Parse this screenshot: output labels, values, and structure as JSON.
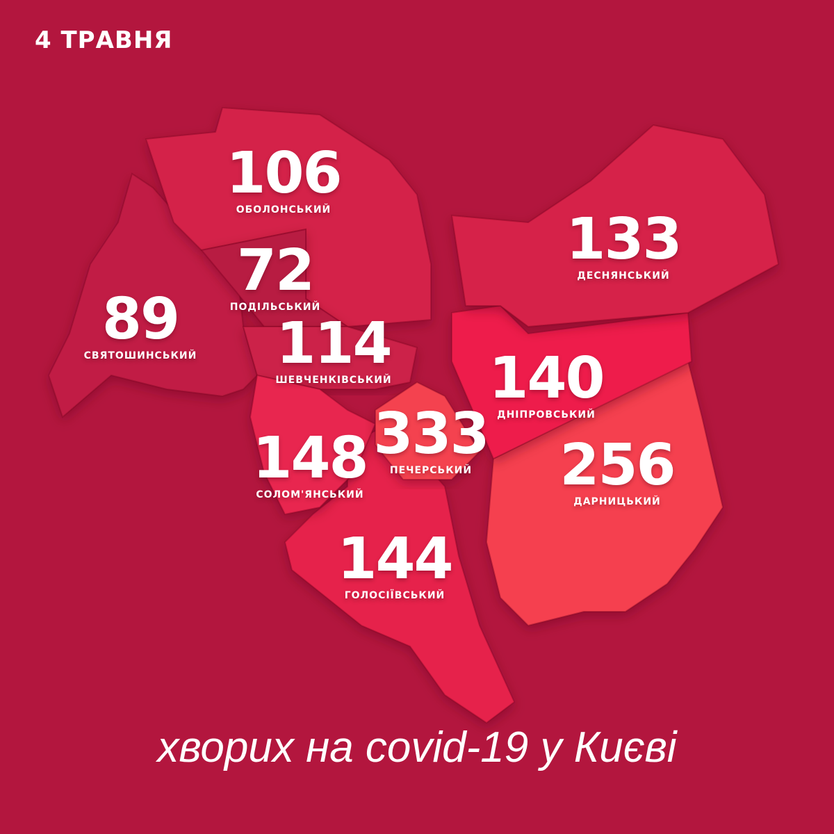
{
  "date": "4 ТРАВНЯ",
  "footer": "хворих на covid-19 у Києві",
  "districts": [
    {
      "name": "ОБОЛОНСЬКИЙ",
      "value": "106",
      "color": "#d4234a"
    },
    {
      "name": "ПОДІЛЬСЬКИЙ",
      "value": "72",
      "color": "#b81a42"
    },
    {
      "name": "СВЯТОШИНСЬКИЙ",
      "value": "89",
      "color": "#c11d45"
    },
    {
      "name": "ШЕВЧЕНКІВСЬКИЙ",
      "value": "114",
      "color": "#cc2049"
    },
    {
      "name": "СОЛОМ'ЯНСЬКИЙ",
      "value": "148",
      "color": "#e8264f"
    },
    {
      "name": "ПЕЧЕРСЬКИЙ",
      "value": "333",
      "color": "#f4434f"
    },
    {
      "name": "ГОЛОСІЇВСЬКИЙ",
      "value": "144",
      "color": "#e6224c"
    },
    {
      "name": "ДЕСНЯНСЬКИЙ",
      "value": "133",
      "color": "#d62148"
    },
    {
      "name": "ДНІПРОВСЬКИЙ",
      "value": "140",
      "color": "#ee1f4c"
    },
    {
      "name": "ДАРНИЦЬКИЙ",
      "value": "256",
      "color": "#f53f50"
    }
  ],
  "colors": {
    "background": "#b3163e",
    "text": "#ffffff"
  }
}
